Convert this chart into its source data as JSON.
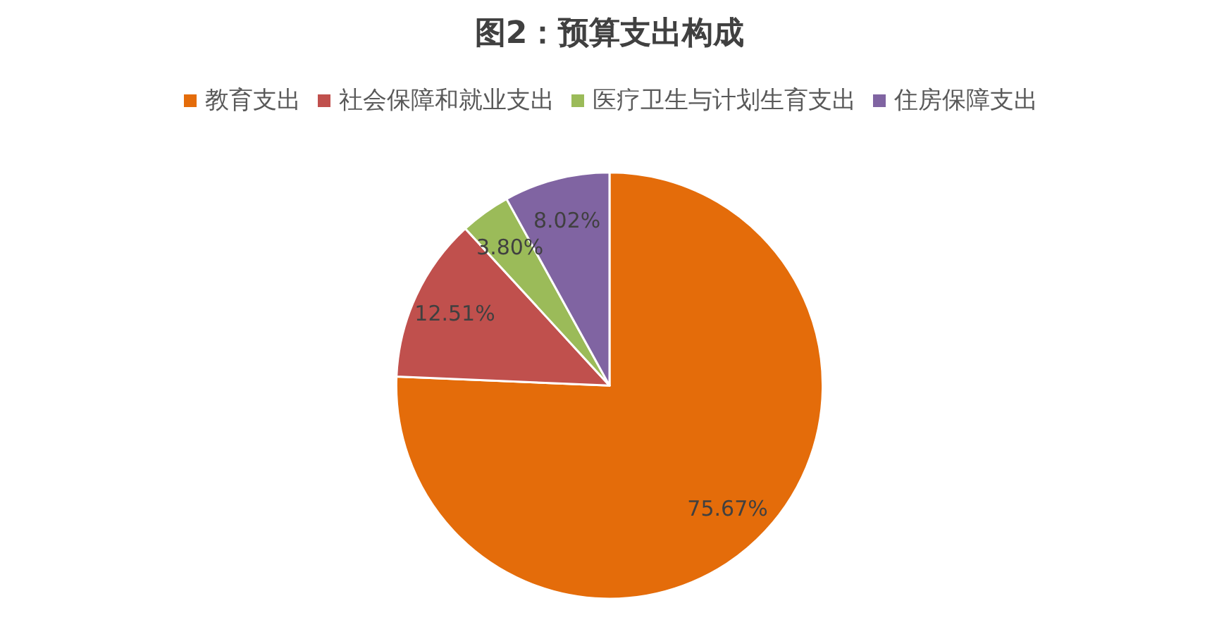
{
  "chart_data": {
    "type": "pie",
    "title": "图2：预算支出构成",
    "categories": [
      "教育支出",
      "社会保障和就业支出",
      "医疗卫生与计划生育支出",
      "住房保障支出"
    ],
    "values": [
      75.67,
      12.51,
      3.8,
      8.02
    ],
    "colors": [
      "#e46c0a",
      "#c0504d",
      "#9bbb59",
      "#8064a2"
    ],
    "value_labels": [
      "75.67%",
      "12.51%",
      "3.80%",
      "8.02%"
    ],
    "legend": "top"
  }
}
